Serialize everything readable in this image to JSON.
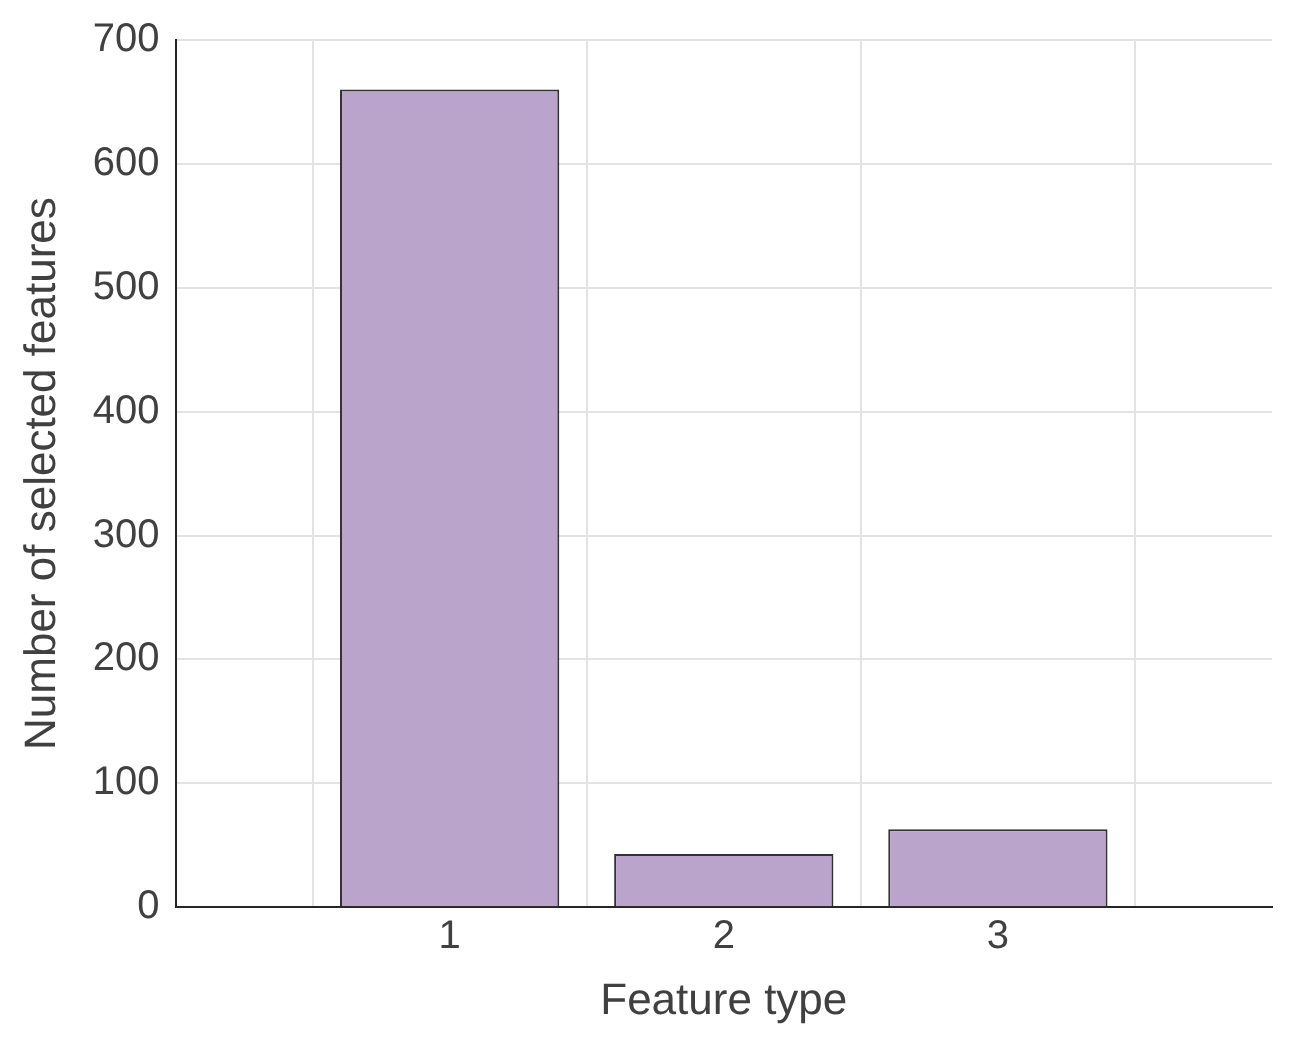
{
  "chart_data": {
    "type": "bar",
    "xlabel": "Feature type",
    "ylabel": "Number of selected features",
    "x": [
      1,
      2,
      3
    ],
    "series": [
      {
        "color": "#bba4cc",
        "values": [
          660,
          43,
          63
        ]
      }
    ],
    "xlim": [
      0,
      4
    ],
    "xticks": [
      1,
      2,
      3
    ],
    "ylim": [
      0,
      700
    ],
    "yticks": [
      0,
      100,
      200,
      300,
      400,
      500,
      600,
      700
    ],
    "grid": true,
    "legend": false
  }
}
